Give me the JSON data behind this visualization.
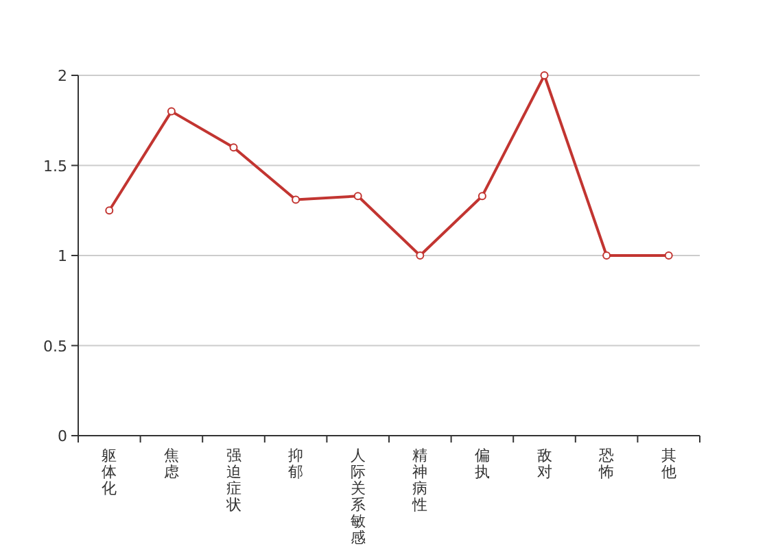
{
  "chart_data": {
    "type": "line",
    "categories": [
      "躯体化",
      "焦虑",
      "强迫症状",
      "抑郁",
      "人际关系敏感",
      "精神病性",
      "偏执",
      "敌对",
      "恐怖",
      "其他"
    ],
    "values": [
      1.25,
      1.8,
      1.6,
      1.31,
      1.33,
      1,
      1.33,
      2,
      1,
      1
    ],
    "color": "#c23531",
    "ylim": [
      0,
      2
    ],
    "yticks": [
      0,
      0.5,
      1,
      1.5,
      2
    ],
    "grid": "y",
    "marker": "circle",
    "line_style": "solid"
  }
}
